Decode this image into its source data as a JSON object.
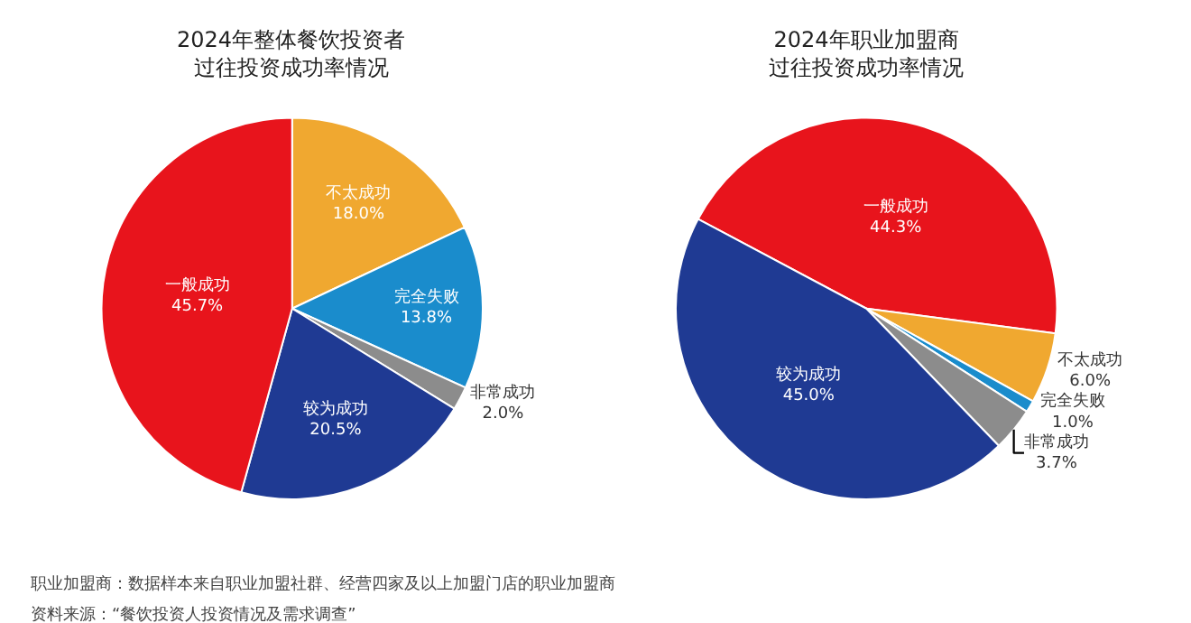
{
  "chart_data": [
    {
      "type": "pie",
      "title": "2024年整体餐饮投资者过往投资成功率情况",
      "categories": [
        "不太成功",
        "完全失败",
        "非常成功",
        "较为成功",
        "一般成功"
      ],
      "values": [
        18.0,
        13.8,
        2.0,
        20.5,
        45.7
      ],
      "value_labels": [
        "18.0%",
        "13.8%",
        "2.0%",
        "20.5%",
        "45.7%"
      ],
      "colors": [
        "#f0a830",
        "#1a8ccc",
        "#8c8c8c",
        "#1f3a93",
        "#e8141c"
      ],
      "legend": false,
      "annotations": [
        "职业加盟商：数据样本来自职业加盟社群、经营四家及以上加盟门店的职业加盟商",
        "资料来源：“餐饮投资人投资情况及需求调查”"
      ]
    },
    {
      "type": "pie",
      "title": "2024年职业加盟商过往投资成功率情况",
      "categories": [
        "一般成功",
        "不太成功",
        "完全失败",
        "非常成功",
        "较为成功"
      ],
      "values": [
        44.3,
        6.0,
        1.0,
        3.7,
        45.0
      ],
      "value_labels": [
        "44.3%",
        "6.0%",
        "1.0%",
        "3.7%",
        "45.0%"
      ],
      "colors": [
        "#e8141c",
        "#f0a830",
        "#1a8ccc",
        "#8c8c8c",
        "#1f3a93"
      ],
      "legend": false
    }
  ]
}
